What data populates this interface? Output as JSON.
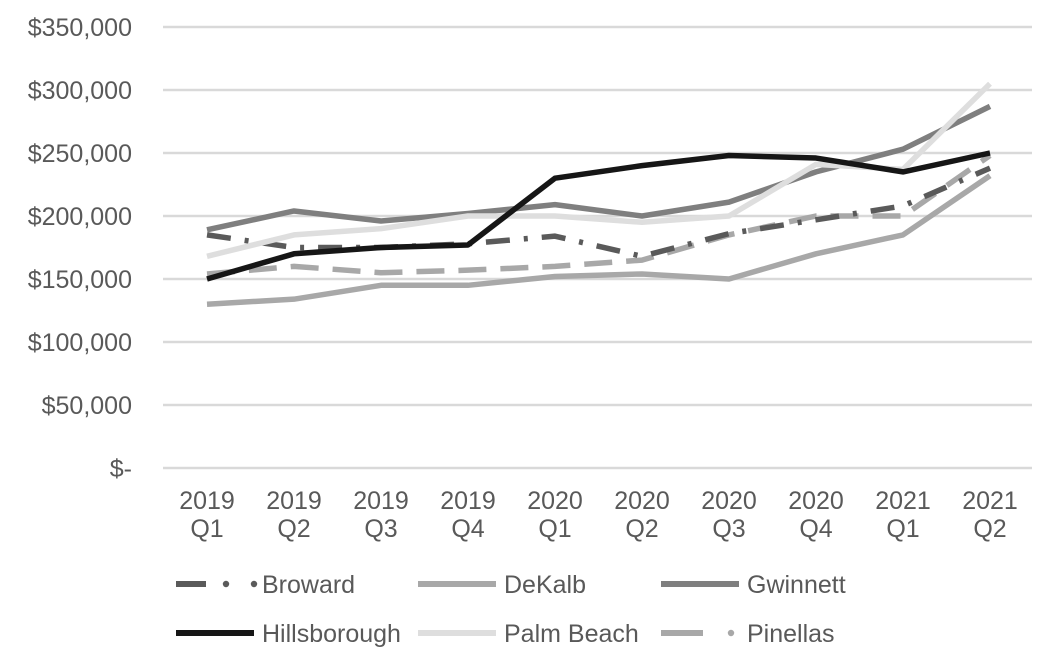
{
  "chart_data": {
    "type": "line",
    "title": "",
    "xlabel": "",
    "ylabel": "",
    "ylim": [
      0,
      350000
    ],
    "y_ticks": [
      {
        "value": 0,
        "label": "$-"
      },
      {
        "value": 50000,
        "label": "$50,000"
      },
      {
        "value": 100000,
        "label": "$100,000"
      },
      {
        "value": 150000,
        "label": "$150,000"
      },
      {
        "value": 200000,
        "label": "$200,000"
      },
      {
        "value": 250000,
        "label": "$250,000"
      },
      {
        "value": 300000,
        "label": "$300,000"
      },
      {
        "value": 350000,
        "label": "$350,000"
      }
    ],
    "categories": [
      {
        "year": "2019",
        "quarter": "Q1"
      },
      {
        "year": "2019",
        "quarter": "Q2"
      },
      {
        "year": "2019",
        "quarter": "Q3"
      },
      {
        "year": "2019",
        "quarter": "Q4"
      },
      {
        "year": "2020",
        "quarter": "Q1"
      },
      {
        "year": "2020",
        "quarter": "Q2"
      },
      {
        "year": "2020",
        "quarter": "Q3"
      },
      {
        "year": "2020",
        "quarter": "Q4"
      },
      {
        "year": "2021",
        "quarter": "Q1"
      },
      {
        "year": "2021",
        "quarter": "Q2"
      }
    ],
    "grid": true,
    "legend_position": "bottom",
    "series": [
      {
        "name": "Broward",
        "color": "#5a5a5a",
        "style": "dash-dot",
        "values": [
          185000,
          175000,
          175000,
          178000,
          184000,
          168000,
          186000,
          197000,
          208000,
          238000
        ]
      },
      {
        "name": "DeKalb",
        "color": "#a8a8a8",
        "style": "solid",
        "values": [
          130000,
          134000,
          145000,
          145000,
          152000,
          154000,
          150000,
          170000,
          185000,
          232000
        ]
      },
      {
        "name": "Gwinnett",
        "color": "#7f7f7f",
        "style": "solid",
        "values": [
          189000,
          204000,
          196000,
          202000,
          209000,
          200000,
          211000,
          235000,
          253000,
          287000
        ]
      },
      {
        "name": "Hillsborough",
        "color": "#161616",
        "style": "solid",
        "values": [
          150000,
          170000,
          175000,
          177000,
          230000,
          240000,
          248000,
          246000,
          235000,
          250000
        ]
      },
      {
        "name": "Palm Beach",
        "color": "#dedede",
        "style": "solid",
        "values": [
          168000,
          185000,
          190000,
          200000,
          200000,
          195000,
          200000,
          241000,
          237000,
          305000
        ]
      },
      {
        "name": "Pinellas",
        "color": "#a8a8a8",
        "style": "dash",
        "values": [
          154000,
          160000,
          155000,
          157000,
          160000,
          165000,
          185000,
          200000,
          200000,
          248000
        ]
      }
    ]
  }
}
